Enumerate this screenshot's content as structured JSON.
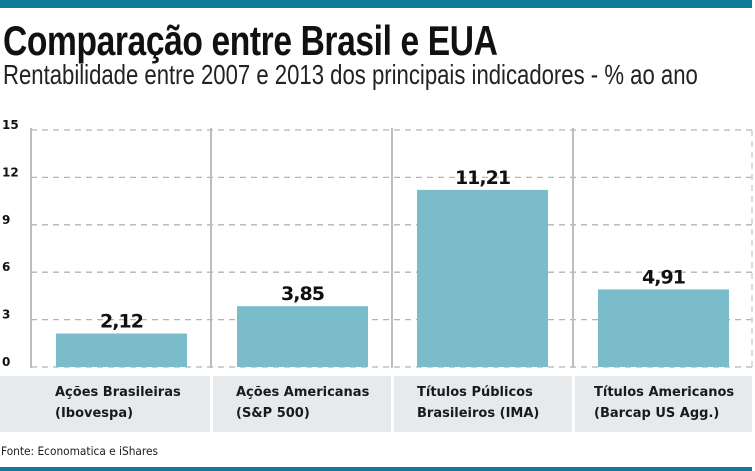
{
  "header": {
    "title": "Comparação entre Brasil e EUA",
    "subtitle": "Rentabilidade entre 2007 e 2013 dos principais indicadores - % ao ano"
  },
  "footer": {
    "source": "Fonte: Economatica e iShares"
  },
  "colors": {
    "accent_bar": "#0e7c96",
    "bar_fill": "#7bbccb",
    "label_band": "#e6eaed",
    "grid": "#b4b4b4"
  },
  "chart_data": {
    "type": "bar",
    "title": "Comparação entre Brasil e EUA",
    "subtitle": "Rentabilidade entre 2007 e 2013 dos principais indicadores - % ao ano",
    "xlabel": "",
    "ylabel": "",
    "ylim": [
      0,
      15
    ],
    "yticks": [
      0,
      3,
      6,
      9,
      12,
      15
    ],
    "ytick_labels": [
      "0",
      "3",
      "6",
      "9",
      "12",
      "15"
    ],
    "grid": true,
    "categories": [
      [
        "Ações Brasileiras",
        "(Ibovespa)"
      ],
      [
        "Ações Americanas",
        "(S&P 500)"
      ],
      [
        "Títulos Públicos",
        "Brasileiros (IMA)"
      ],
      [
        "Títulos Americanos",
        "(Barcap US Agg.)"
      ]
    ],
    "values": [
      2.12,
      3.85,
      11.21,
      4.91
    ],
    "value_labels": [
      "2,12",
      "3,85",
      "11,21",
      "4,91"
    ]
  }
}
